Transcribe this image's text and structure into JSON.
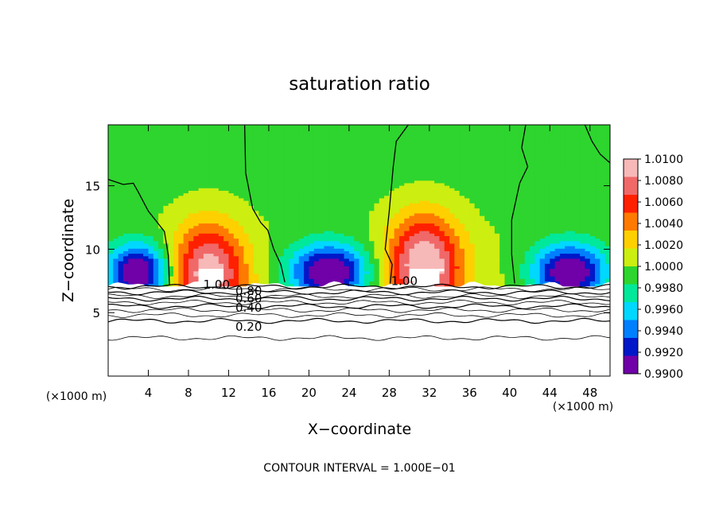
{
  "chart_data": {
    "type": "heatmap",
    "title": "saturation ratio",
    "xlabel": "X−coordinate",
    "ylabel": "Z−coordinate",
    "x_unit": "(×1000 m)",
    "y_unit": "(×1000 m)",
    "xlim": [
      0,
      50
    ],
    "ylim": [
      0,
      19.8
    ],
    "x_ticks": [
      4,
      8,
      12,
      16,
      20,
      24,
      28,
      32,
      36,
      40,
      44,
      48
    ],
    "x_tick_labels": [
      "4",
      "8",
      "12",
      "16",
      "20",
      "24",
      "28",
      "32",
      "36",
      "40",
      "44",
      "48"
    ],
    "y_ticks": [
      5,
      10,
      15
    ],
    "y_tick_labels": [
      "5",
      "10",
      "15"
    ],
    "footer": "CONTOUR INTERVAL = 1.000E−01",
    "colorbar": {
      "labels": [
        "1.0100",
        "1.0080",
        "1.0060",
        "1.0040",
        "1.0020",
        "1.0000",
        "0.9980",
        "0.9960",
        "0.9940",
        "0.9920",
        "0.9900"
      ],
      "values": [
        1.01,
        1.008,
        1.006,
        1.004,
        1.002,
        1.0,
        0.998,
        0.996,
        0.994,
        0.992,
        0.99
      ],
      "colors": [
        "#f7b8b8",
        "#f06868",
        "#ff2000",
        "#ff7a00",
        "#ffd000",
        "#ccee10",
        "#2ed52e",
        "#00e89a",
        "#00d8ff",
        "#0080ff",
        "#0018c8",
        "#7000a8"
      ]
    },
    "contour_labels": [
      {
        "text": "1.00",
        "x": 10.8,
        "z": 7.2
      },
      {
        "text": "0.80",
        "x": 14.0,
        "z": 6.7
      },
      {
        "text": "0.60",
        "x": 14.0,
        "z": 6.1
      },
      {
        "text": "0.40",
        "x": 14.0,
        "z": 5.4
      },
      {
        "text": "0.20",
        "x": 14.0,
        "z": 3.9
      },
      {
        "text": "1.00",
        "x": 29.5,
        "z": 7.5
      }
    ],
    "subsaturated_levels": [
      0.2,
      0.4,
      0.6,
      0.8,
      1.0
    ],
    "cloud_layer_base_z": 7.1,
    "cloud_top_z": 19.8,
    "updraft_maxima_x": [
      10,
      31.5
    ],
    "downdraft_minima_x": [
      3,
      22,
      46
    ]
  }
}
